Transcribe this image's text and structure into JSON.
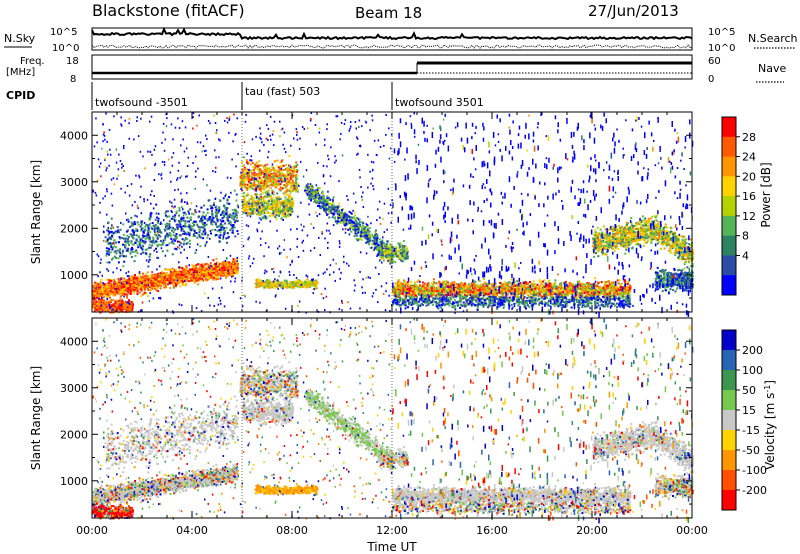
{
  "header": {
    "title": "Blackstone (fitACF)",
    "beam": "Beam 18",
    "date": "27/Jun/2013"
  },
  "status_panels": {
    "nsky_label": "N.Sky",
    "nsearch_label": "N.Search",
    "nsky_ticks": [
      "10^5",
      "10^0"
    ],
    "freq_label_1": "Freq.",
    "freq_label_2": "[MHz]",
    "freq_ticks": [
      "18",
      "8"
    ],
    "nave_label": "Nave",
    "nave_ticks": [
      "60",
      "0"
    ],
    "cpid_label": "CPID"
  },
  "cpid_segments": [
    {
      "label": "twofsound -3501",
      "start_h": 0
    },
    {
      "label": "tau (fast) 503",
      "start_h": 6
    },
    {
      "label": "twofsound 3501",
      "start_h": 12
    }
  ],
  "chart_data": [
    {
      "type": "heatmap",
      "title": "Power",
      "xlabel": "",
      "ylabel": "Slant Range [km]",
      "xlim": [
        0,
        24
      ],
      "ylim": [
        200,
        4500
      ],
      "yticks": [
        "1000",
        "2000",
        "3000",
        "4000"
      ],
      "colorbar": {
        "label": "Power [dB]",
        "ticks": [
          "28",
          "24",
          "20",
          "16",
          "12",
          "8",
          "4"
        ],
        "colors": [
          "#ff0000",
          "#ff5a00",
          "#ff9600",
          "#ffd200",
          "#b4d200",
          "#55b455",
          "#2d8264",
          "#2a4ea4",
          "#0000ff"
        ]
      }
    },
    {
      "type": "heatmap",
      "title": "Velocity",
      "xlabel": "Time UT",
      "ylabel": "Slant Range [km]",
      "xlim": [
        0,
        24
      ],
      "ylim": [
        200,
        4500
      ],
      "xticks": [
        "00:00",
        "04:00",
        "08:00",
        "12:00",
        "16:00",
        "20:00",
        "00:00"
      ],
      "yticks": [
        "1000",
        "2000",
        "3000",
        "4000"
      ],
      "colorbar": {
        "label_main": "Velocity [m s",
        "label_sup": "-1",
        "label_end": "]",
        "ticks": [
          "200",
          "100",
          "50",
          "15",
          "-15",
          "-50",
          "-100",
          "-200"
        ],
        "colors": [
          "#0000c8",
          "#2864b4",
          "#3c9650",
          "#78c850",
          "#c8c8c8",
          "#ffd200",
          "#ff9600",
          "#ff5000",
          "#ff0000"
        ]
      }
    }
  ]
}
